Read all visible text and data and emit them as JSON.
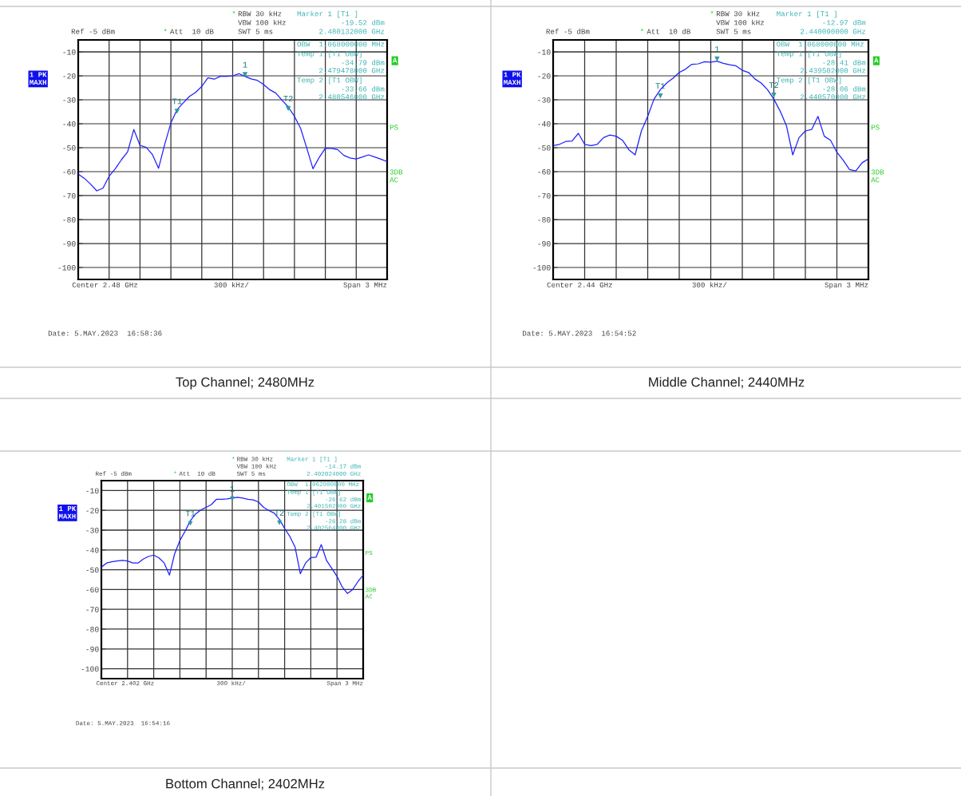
{
  "chart_data": [
    {
      "type": "line",
      "title": "Top Channel; 2480MHz",
      "categories": [
        null,
        null,
        null,
        null,
        null,
        null,
        null,
        null,
        null,
        null,
        null,
        null,
        null,
        null,
        null,
        null,
        null,
        null,
        null,
        null,
        null,
        null,
        null,
        null,
        null,
        null,
        null,
        null,
        null,
        null,
        null,
        null,
        null,
        null,
        null,
        null,
        null,
        null,
        null,
        null,
        null,
        null,
        null,
        null,
        null,
        null,
        null,
        null,
        null,
        null,
        null
      ],
      "ylim": [
        -105,
        -5
      ],
      "yticks": [
        -10,
        -20,
        -30,
        -40,
        -50,
        -60,
        -70,
        -80,
        -90,
        -100
      ],
      "grid": true,
      "tick_labels": "y",
      "series": [
        {
          "color": "#1f1fff",
          "values": [
            -61,
            -62.8,
            -65.2,
            -68,
            -66.9,
            -61.9,
            -58.8,
            -55,
            -51.7,
            -42.4,
            -49,
            -49.9,
            -52.8,
            -58.6,
            -48.6,
            -39.7,
            -34.1,
            -31.3,
            -28.6,
            -26.9,
            -24.4,
            -20.8,
            -21.4,
            -20.2,
            -20.2,
            -20,
            -19.1,
            -20.2,
            -21.3,
            -21.9,
            -23.6,
            -25.8,
            -27.2,
            -30.2,
            -33,
            -36.9,
            -41.9,
            -50.2,
            -58.8,
            -54.1,
            -50.2,
            -50.3,
            -50.8,
            -53.2,
            -54.3,
            -54.7,
            -53.9,
            -53,
            -53.9,
            -54.8,
            -55.8
          ]
        },
        {
          "type": "scatter",
          "marker": "triangle",
          "color": "#2a9d9d",
          "values": [
            null,
            null,
            null,
            null,
            null,
            null,
            null,
            null,
            null,
            null,
            null,
            null,
            null,
            null,
            null,
            null,
            -34.79,
            null,
            null,
            null,
            null,
            null,
            null,
            null,
            null,
            null,
            null,
            -19.52,
            null,
            null,
            null,
            null,
            null,
            null,
            -33.66,
            null,
            null,
            null,
            null,
            null,
            null,
            null,
            null,
            null,
            null,
            null,
            null,
            null,
            null,
            null,
            null
          ]
        }
      ],
      "annotations": [
        "*",
        "RBW 30 kHz",
        "VBW 100 kHz",
        "SWT 5 ms",
        "Marker 1 [T1 ]",
        "-19.52 dBm",
        "2.480132000 GHz",
        "Ref -5 dBm",
        "*",
        "Att  10 dB",
        "OBW  1.068000000 MHz",
        "Temp 1 [T1 OBW]",
        "-34.79 dBm",
        "2.479478000 GHz",
        "Temp 2 [T1 OBW]",
        "-33.66 dBm",
        "2.480546000 GHz",
        "1 PK\nMAXH",
        "A",
        "PS",
        "3DB\nAC",
        "Center 2.48 GHz",
        "300 kHz/",
        "Span 3 MHz",
        "Date: 5.MAY.2023  16:58:36",
        {
          "text": "T1",
          "y": -34.79
        },
        {
          "text": "1",
          "y": -19.52
        },
        {
          "text": "T2",
          "y": -33.66
        }
      ]
    },
    {
      "type": "line",
      "title": "Middle Channel; 2440MHz",
      "categories": [
        null,
        null,
        null,
        null,
        null,
        null,
        null,
        null,
        null,
        null,
        null,
        null,
        null,
        null,
        null,
        null,
        null,
        null,
        null,
        null,
        null,
        null,
        null,
        null,
        null,
        null,
        null,
        null,
        null,
        null,
        null,
        null,
        null,
        null,
        null,
        null,
        null,
        null,
        null,
        null,
        null,
        null,
        null,
        null,
        null,
        null,
        null,
        null,
        null,
        null,
        null
      ],
      "ylim": [
        -105,
        -5
      ],
      "yticks": [
        -10,
        -20,
        -30,
        -40,
        -50,
        -60,
        -70,
        -80,
        -90,
        -100
      ],
      "grid": true,
      "tick_labels": "y",
      "series": [
        {
          "color": "#1f1fff",
          "values": [
            -49.1,
            -48.6,
            -47.4,
            -47.2,
            -44,
            -48.6,
            -49.1,
            -48.6,
            -45.8,
            -44.7,
            -45.2,
            -46.9,
            -50.8,
            -53,
            -43,
            -36.9,
            -29.7,
            -25.8,
            -23,
            -21,
            -18.6,
            -17.2,
            -15.2,
            -15,
            -14.1,
            -14.3,
            -13.9,
            -14.8,
            -15.4,
            -15.8,
            -17.7,
            -18.6,
            -21.3,
            -23,
            -25.8,
            -29.7,
            -34.7,
            -40.8,
            -53,
            -45.8,
            -43,
            -42.4,
            -36.9,
            -45.2,
            -46.9,
            -51.9,
            -55.2,
            -59.1,
            -59.7,
            -56.3,
            -54.7
          ]
        },
        {
          "type": "scatter",
          "marker": "triangle",
          "color": "#2a9d9d",
          "values": [
            null,
            null,
            null,
            null,
            null,
            null,
            null,
            null,
            null,
            null,
            null,
            null,
            null,
            null,
            null,
            null,
            null,
            -28.41,
            null,
            null,
            null,
            null,
            null,
            null,
            null,
            null,
            -12.97,
            null,
            null,
            null,
            null,
            null,
            null,
            null,
            null,
            -28.06,
            null,
            null,
            null,
            null,
            null,
            null,
            null,
            null,
            null,
            null,
            null,
            null,
            null,
            null,
            null
          ]
        }
      ],
      "annotations": [
        "*",
        "RBW 30 kHz",
        "VBW 100 kHz",
        "SWT 5 ms",
        "Marker 1 [T1 ]",
        "-12.97 dBm",
        "2.440090000 GHz",
        "Ref -5 dBm",
        "*",
        "Att  10 dB",
        "OBW  1.068000000 MHz",
        "Temp 1 [T1 OBW]",
        "-28.41 dBm",
        "2.439502000 GHz",
        "Temp 2 [T1 OBW]",
        "-28.06 dBm",
        "2.440570000 GHz",
        "1 PK\nMAXH",
        "A",
        "PS",
        "3DB\nAC",
        "Center 2.44 GHz",
        "300 kHz/",
        "Span 3 MHz",
        "Date: 5.MAY.2023  16:54:52",
        {
          "text": "T1",
          "y": -28.41
        },
        {
          "text": "1",
          "y": -12.97
        },
        {
          "text": "T2",
          "y": -28.06
        }
      ]
    },
    {
      "type": "line",
      "title": "Bottom Channel; 2402MHz",
      "categories": [
        null,
        null,
        null,
        null,
        null,
        null,
        null,
        null,
        null,
        null,
        null,
        null,
        null,
        null,
        null,
        null,
        null,
        null,
        null,
        null,
        null,
        null,
        null,
        null,
        null,
        null,
        null,
        null,
        null,
        null,
        null,
        null,
        null,
        null,
        null,
        null,
        null,
        null,
        null,
        null,
        null,
        null,
        null,
        null,
        null,
        null,
        null,
        null,
        null,
        null,
        null
      ],
      "ylim": [
        -105,
        -5
      ],
      "yticks": [
        -10,
        -20,
        -30,
        -40,
        -50,
        -60,
        -70,
        -80,
        -90,
        -100
      ],
      "grid": true,
      "tick_labels": "y",
      "series": [
        {
          "color": "#1f1fff",
          "values": [
            -48.7,
            -46.6,
            -46,
            -45.6,
            -45.3,
            -45.6,
            -46.6,
            -46.6,
            -44.6,
            -43.3,
            -42.6,
            -44,
            -46.6,
            -52.7,
            -41.9,
            -35.2,
            -30.5,
            -25.2,
            -21.8,
            -19.8,
            -18.5,
            -17.1,
            -14.4,
            -14.4,
            -14.2,
            -13.8,
            -13.4,
            -13.8,
            -14.4,
            -14.7,
            -15.8,
            -18.5,
            -20.1,
            -21.4,
            -24.5,
            -29.2,
            -33.2,
            -38.6,
            -52,
            -46.6,
            -43.9,
            -43.7,
            -37.3,
            -45.3,
            -49.3,
            -53.3,
            -58.7,
            -62,
            -60,
            -56,
            -52.7
          ]
        },
        {
          "type": "scatter",
          "marker": "triangle",
          "color": "#2a9d9d",
          "values": [
            null,
            null,
            null,
            null,
            null,
            null,
            null,
            null,
            null,
            null,
            null,
            null,
            null,
            null,
            null,
            null,
            null,
            -26.62,
            null,
            null,
            null,
            null,
            null,
            null,
            null,
            -14.17,
            null,
            null,
            null,
            null,
            null,
            null,
            null,
            null,
            -26.28,
            null,
            null,
            null,
            null,
            null,
            null,
            null,
            null,
            null,
            null,
            null,
            null,
            null,
            null,
            null,
            null
          ]
        }
      ],
      "annotations": [
        "*",
        "RBW 30 kHz",
        "VBW 100 kHz",
        "SWT 5 ms",
        "Marker 1 [T1 ]",
        "-14.17 dBm",
        "2.402024000 GHz",
        "Ref -5 dBm",
        "*",
        "Att  10 dB",
        "OBW  1.062000000 MHz",
        "Temp 1 [T1 OBW]",
        "-26.62 dBm",
        "2.401502000 GHz",
        "Temp 2 [T1 OBW]",
        "-26.28 dBm",
        "2.402564000 GHz",
        "1 PK\nMAXH",
        "A",
        "PS",
        "3DB\nAC",
        "Center 2.402 GHz",
        "300 kHz/",
        "Span 3 MHz",
        "Date: 5.MAY.2023  16:54:16",
        {
          "text": "T1",
          "y": -26.62
        },
        {
          "text": "1",
          "y": -14.17
        },
        {
          "text": "T2",
          "y": -26.28
        }
      ]
    }
  ]
}
